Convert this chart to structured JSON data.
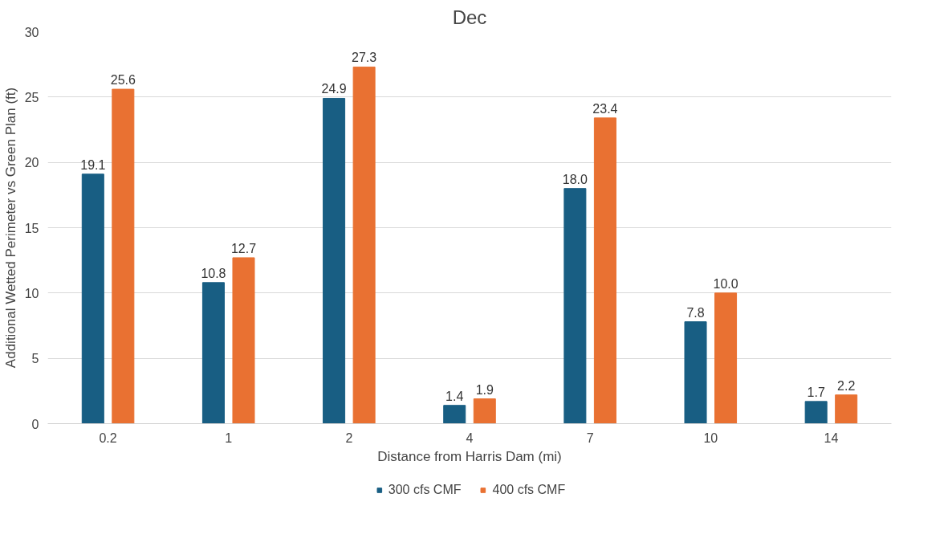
{
  "chart_data": {
    "type": "bar",
    "title": "Dec",
    "xlabel": "Distance from Harris Dam (mi)",
    "ylabel": "Additional Wetted Perimeter vs Green Plan (ft)",
    "categories": [
      "0.2",
      "1",
      "2",
      "4",
      "7",
      "10",
      "14"
    ],
    "series": [
      {
        "name": "300 cfs CMF",
        "color": "#185e83",
        "values": [
          19.1,
          10.8,
          24.9,
          1.4,
          18.0,
          7.8,
          1.7
        ],
        "value_labels": [
          "19.1",
          "10.8",
          "24.9",
          "1.4",
          "18.0",
          "7.8",
          "1.7"
        ]
      },
      {
        "name": "400 cfs CMF",
        "color": "#e97132",
        "values": [
          25.6,
          12.7,
          27.3,
          1.9,
          23.4,
          10.0,
          2.2
        ],
        "value_labels": [
          "25.6",
          "12.7",
          "27.3",
          "1.9",
          "23.4",
          "10.0",
          "2.2"
        ]
      }
    ],
    "ylim": [
      0,
      30
    ],
    "yticks": [
      0,
      5,
      10,
      15,
      20,
      25,
      30
    ],
    "grid": "y",
    "legend": "bottom",
    "data_labels": true
  }
}
